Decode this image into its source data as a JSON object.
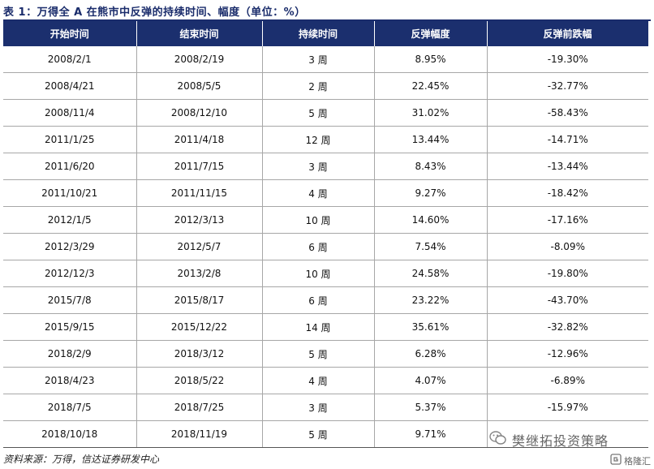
{
  "title": "表 1：万得全 A 在熊市中反弹的持续时间、幅度（单位：%）",
  "table": {
    "headers": [
      "开始时间",
      "结束时间",
      "持续时间",
      "反弹幅度",
      "反弹前跌幅"
    ],
    "rows": [
      [
        "2008/2/1",
        "2008/2/19",
        "3 周",
        "8.95%",
        "-19.30%"
      ],
      [
        "2008/4/21",
        "2008/5/5",
        "2 周",
        "22.45%",
        "-32.77%"
      ],
      [
        "2008/11/4",
        "2008/12/10",
        "5 周",
        "31.02%",
        "-58.43%"
      ],
      [
        "2011/1/25",
        "2011/4/18",
        "12 周",
        "13.44%",
        "-14.71%"
      ],
      [
        "2011/6/20",
        "2011/7/15",
        "3 周",
        "8.43%",
        "-13.44%"
      ],
      [
        "2011/10/21",
        "2011/11/15",
        "4 周",
        "9.27%",
        "-18.42%"
      ],
      [
        "2012/1/5",
        "2012/3/13",
        "10 周",
        "14.60%",
        "-17.16%"
      ],
      [
        "2012/3/29",
        "2012/5/7",
        "6 周",
        "7.54%",
        "-8.09%"
      ],
      [
        "2012/12/3",
        "2013/2/8",
        "10 周",
        "24.58%",
        "-19.80%"
      ],
      [
        "2015/7/8",
        "2015/8/17",
        "6 周",
        "23.22%",
        "-43.70%"
      ],
      [
        "2015/9/15",
        "2015/12/22",
        "14 周",
        "35.61%",
        "-32.82%"
      ],
      [
        "2018/2/9",
        "2018/3/12",
        "5 周",
        "6.28%",
        "-12.96%"
      ],
      [
        "2018/4/23",
        "2018/5/22",
        "4 周",
        "4.07%",
        "-6.89%"
      ],
      [
        "2018/7/5",
        "2018/7/25",
        "3 周",
        "5.37%",
        "-15.97%"
      ],
      [
        "2018/10/18",
        "2018/11/19",
        "5 周",
        "9.71%",
        ""
      ]
    ]
  },
  "source": "资料来源：万得，信达证券研发中心",
  "watermark": {
    "text": "樊继拓投资策略",
    "corner_text": "格隆汇",
    "icon": "wechat-icon"
  },
  "colors": {
    "header_bg": "#1b2f6e",
    "title": "#1a2c6b"
  }
}
